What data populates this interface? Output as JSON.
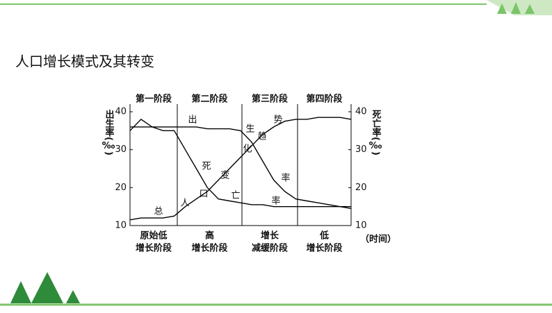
{
  "header": {
    "title": "人口增长模式及其转变"
  },
  "chart_data": {
    "type": "line",
    "y_label": "出生率(‰)",
    "y2_label": "死亡率(‰)",
    "x_label": "（时间）",
    "categories": [
      null,
      null,
      null,
      null,
      null,
      null,
      null,
      null,
      null,
      null,
      null,
      null,
      null,
      null,
      null,
      null,
      null,
      null,
      null,
      null,
      null
    ],
    "ylim": [
      10,
      40
    ],
    "yticks": [
      10,
      20,
      30,
      40
    ],
    "y2lim": [
      10,
      40
    ],
    "y2ticks": [
      10,
      20,
      30,
      40
    ],
    "stages": [
      {
        "name": "第一阶段",
        "label": [
          "原始低",
          "增长阶段"
        ]
      },
      {
        "name": "第二阶段",
        "label": [
          "高",
          "增长阶段"
        ]
      },
      {
        "name": "第三阶段",
        "label": [
          "增长",
          "减缓阶段"
        ]
      },
      {
        "name": "第四阶段",
        "label": [
          "低",
          "增长阶段"
        ]
      }
    ],
    "annotations": [
      "总",
      "人",
      "口",
      "变",
      "化",
      "趋",
      "势",
      "出",
      "生",
      "率",
      "死",
      "亡",
      "率"
    ],
    "series": [
      {
        "color": "#000000",
        "values": [
          36,
          36,
          36,
          36,
          36,
          36,
          36,
          35.5,
          35.5,
          35.5,
          35,
          32,
          27,
          22,
          19,
          17,
          16.5,
          16,
          15.5,
          15,
          14.5
        ]
      },
      {
        "color": "#000000",
        "axis": "y2",
        "values": [
          35,
          38,
          36,
          35,
          35,
          30,
          25,
          20,
          17,
          16.5,
          16,
          15.5,
          15.5,
          15,
          15,
          15,
          15,
          15,
          15,
          15,
          15
        ]
      },
      {
        "color": "#000000",
        "values": [
          11.5,
          12,
          12,
          12,
          12.5,
          15,
          17,
          19,
          22,
          25,
          28,
          31,
          34,
          36,
          37.5,
          38,
          38,
          38.5,
          38.5,
          38.5,
          38
        ]
      }
    ]
  }
}
